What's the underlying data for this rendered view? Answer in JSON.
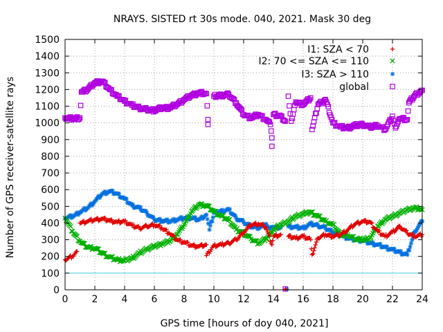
{
  "chart_data": {
    "type": "scatter",
    "title": "NRAYS. SISTED rt 30s mode. 040, 2021. Mask 30 deg",
    "xlabel": "GPS time [hours of doy 040, 2021]",
    "ylabel": "Number of GPS receiver-satellite rays",
    "xlim": [
      0,
      24
    ],
    "ylim": [
      0,
      1500
    ],
    "xticks": [
      0,
      2,
      4,
      6,
      8,
      10,
      12,
      14,
      16,
      18,
      20,
      22,
      24
    ],
    "yticks": [
      0,
      100,
      200,
      300,
      400,
      500,
      600,
      700,
      800,
      900,
      1000,
      1100,
      1200,
      1300,
      1400,
      1500
    ],
    "grid": true,
    "legend_position": "top-right",
    "threshold_line": {
      "y": 100,
      "color": "#40d0e0"
    },
    "series": [
      {
        "name": "I1: SZA < 70",
        "marker": "+",
        "color": "#e00000",
        "points": [
          [
            0,
            180
          ],
          [
            0.5,
            200
          ],
          [
            0.8,
            230
          ],
          [
            1.0,
            400
          ],
          [
            1.5,
            410
          ],
          [
            2,
            420
          ],
          [
            2.5,
            425
          ],
          [
            3,
            415
          ],
          [
            3.5,
            405
          ],
          [
            4,
            410
          ],
          [
            4.5,
            385
          ],
          [
            5,
            370
          ],
          [
            5.5,
            380
          ],
          [
            6,
            390
          ],
          [
            6.5,
            370
          ],
          [
            7,
            340
          ],
          [
            7.5,
            300
          ],
          [
            8,
            285
          ],
          [
            8.5,
            265
          ],
          [
            9,
            260
          ],
          [
            9.5,
            270
          ],
          [
            10,
            265
          ],
          [
            10.5,
            270
          ],
          [
            11,
            280
          ],
          [
            11.5,
            300
          ],
          [
            12,
            345
          ],
          [
            12.5,
            390
          ],
          [
            13,
            395
          ],
          [
            13.5,
            375
          ],
          [
            14,
            320
          ],
          [
            14.5,
            330
          ],
          [
            15,
            320
          ],
          [
            15.5,
            310
          ],
          [
            16,
            320
          ],
          [
            16.5,
            300
          ],
          [
            17,
            310
          ],
          [
            17.5,
            330
          ],
          [
            18,
            320
          ],
          [
            18.5,
            330
          ],
          [
            19,
            360
          ],
          [
            19.5,
            395
          ],
          [
            20,
            410
          ],
          [
            20.5,
            405
          ],
          [
            21,
            350
          ],
          [
            21.5,
            320
          ],
          [
            22,
            345
          ],
          [
            22.5,
            380
          ],
          [
            23,
            340
          ],
          [
            23.5,
            320
          ],
          [
            24,
            330
          ],
          [
            9.5,
            205
          ],
          [
            13.9,
            270
          ],
          [
            14.8,
            5
          ],
          [
            16.6,
            210
          ]
        ]
      },
      {
        "name": "I2: 70 <= SZA <= 110",
        "marker": "x",
        "color": "#00b000",
        "points": [
          [
            0,
            430
          ],
          [
            0.5,
            350
          ],
          [
            1,
            290
          ],
          [
            1.5,
            255
          ],
          [
            2,
            250
          ],
          [
            2.5,
            220
          ],
          [
            3,
            195
          ],
          [
            3.5,
            180
          ],
          [
            4,
            175
          ],
          [
            4.5,
            190
          ],
          [
            5,
            220
          ],
          [
            5.5,
            245
          ],
          [
            6,
            260
          ],
          [
            6.5,
            275
          ],
          [
            7,
            290
          ],
          [
            7.5,
            330
          ],
          [
            8,
            390
          ],
          [
            8.5,
            470
          ],
          [
            9,
            510
          ],
          [
            9.5,
            505
          ],
          [
            10,
            470
          ],
          [
            10.5,
            440
          ],
          [
            11,
            420
          ],
          [
            11.5,
            360
          ],
          [
            12,
            340
          ],
          [
            12.5,
            305
          ],
          [
            13,
            280
          ],
          [
            13.5,
            305
          ],
          [
            14,
            360
          ],
          [
            14.5,
            390
          ],
          [
            15,
            410
          ],
          [
            15.5,
            440
          ],
          [
            16,
            455
          ],
          [
            16.5,
            465
          ],
          [
            17,
            440
          ],
          [
            17.5,
            410
          ],
          [
            18,
            390
          ],
          [
            18.5,
            330
          ],
          [
            19,
            330
          ],
          [
            19.5,
            305
          ],
          [
            20,
            300
          ],
          [
            20.5,
            310
          ],
          [
            21,
            380
          ],
          [
            21.5,
            420
          ],
          [
            22,
            440
          ],
          [
            22.5,
            460
          ],
          [
            23,
            480
          ],
          [
            23.5,
            490
          ],
          [
            24,
            480
          ]
        ]
      },
      {
        "name": "I3: SZA > 110",
        "marker": "*",
        "color": "#0070e0",
        "points": [
          [
            0,
            430
          ],
          [
            0.5,
            440
          ],
          [
            1,
            465
          ],
          [
            1.5,
            490
          ],
          [
            2,
            530
          ],
          [
            2.5,
            575
          ],
          [
            3,
            590
          ],
          [
            3.5,
            575
          ],
          [
            4,
            545
          ],
          [
            4.5,
            505
          ],
          [
            5,
            490
          ],
          [
            5.5,
            460
          ],
          [
            6,
            420
          ],
          [
            6.5,
            415
          ],
          [
            7,
            410
          ],
          [
            7.5,
            420
          ],
          [
            8,
            430
          ],
          [
            8.5,
            430
          ],
          [
            9,
            420
          ],
          [
            9.5,
            450
          ],
          [
            10,
            460
          ],
          [
            10.5,
            470
          ],
          [
            11,
            480
          ],
          [
            11.5,
            430
          ],
          [
            12,
            405
          ],
          [
            12.5,
            380
          ],
          [
            13,
            370
          ],
          [
            13.5,
            395
          ],
          [
            14,
            370
          ],
          [
            14.5,
            375
          ],
          [
            15,
            380
          ],
          [
            15.5,
            375
          ],
          [
            16,
            370
          ],
          [
            16.5,
            395
          ],
          [
            17,
            385
          ],
          [
            17.5,
            370
          ],
          [
            18,
            345
          ],
          [
            18.5,
            330
          ],
          [
            19,
            310
          ],
          [
            19.5,
            300
          ],
          [
            20,
            295
          ],
          [
            20.5,
            280
          ],
          [
            21,
            270
          ],
          [
            21.5,
            255
          ],
          [
            22,
            240
          ],
          [
            22.5,
            225
          ],
          [
            23,
            210
          ],
          [
            23.5,
            350
          ],
          [
            24,
            410
          ],
          [
            9.7,
            360
          ],
          [
            13.7,
            370
          ],
          [
            14.9,
            5
          ]
        ]
      },
      {
        "name": "global",
        "marker": "square",
        "color": "#b000e0",
        "points": [
          [
            0,
            1030
          ],
          [
            0.5,
            1025
          ],
          [
            1,
            1030
          ],
          [
            1.1,
            1185
          ],
          [
            1.5,
            1200
          ],
          [
            2,
            1240
          ],
          [
            2.5,
            1250
          ],
          [
            3,
            1200
          ],
          [
            3.5,
            1160
          ],
          [
            4,
            1130
          ],
          [
            4.5,
            1105
          ],
          [
            5,
            1090
          ],
          [
            5.5,
            1080
          ],
          [
            6,
            1075
          ],
          [
            6.5,
            1090
          ],
          [
            7,
            1090
          ],
          [
            7.5,
            1110
          ],
          [
            8,
            1140
          ],
          [
            8.5,
            1165
          ],
          [
            9,
            1180
          ],
          [
            9.5,
            1175
          ],
          [
            10,
            1160
          ],
          [
            10.5,
            1165
          ],
          [
            11,
            1170
          ],
          [
            11.5,
            1120
          ],
          [
            12,
            1050
          ],
          [
            12.5,
            1030
          ],
          [
            13,
            1050
          ],
          [
            13.5,
            1020
          ],
          [
            13.8,
            990
          ],
          [
            14,
            1050
          ],
          [
            14.5,
            1040
          ],
          [
            14.8,
            1010
          ],
          [
            15,
            1160
          ],
          [
            15.5,
            1125
          ],
          [
            16,
            1110
          ],
          [
            16.5,
            1150
          ],
          [
            17,
            1110
          ],
          [
            17.5,
            1140
          ],
          [
            18,
            1000
          ],
          [
            18.5,
            975
          ],
          [
            19,
            970
          ],
          [
            19.5,
            985
          ],
          [
            20,
            990
          ],
          [
            20.5,
            975
          ],
          [
            21,
            985
          ],
          [
            21.5,
            960
          ],
          [
            22,
            1040
          ],
          [
            22.5,
            1025
          ],
          [
            23,
            1020
          ],
          [
            23.1,
            1120
          ],
          [
            23.5,
            1165
          ],
          [
            24,
            1195
          ],
          [
            9.6,
            1020
          ],
          [
            9.6,
            990
          ],
          [
            13.9,
            910
          ],
          [
            13.9,
            860
          ],
          [
            14.8,
            5
          ],
          [
            15.2,
            1010
          ],
          [
            16.6,
            960
          ],
          [
            22.2,
            970
          ]
        ]
      }
    ]
  }
}
